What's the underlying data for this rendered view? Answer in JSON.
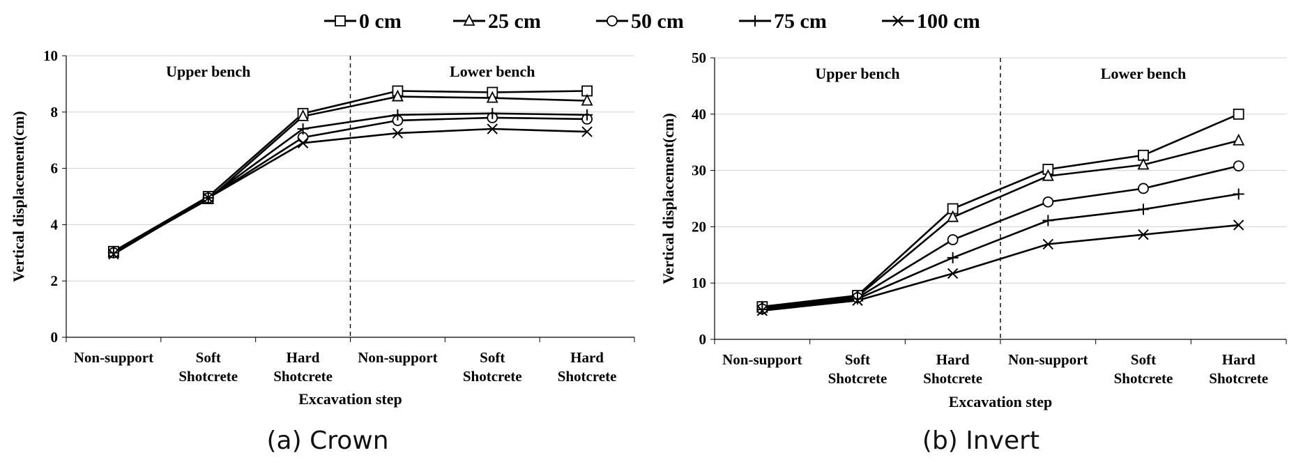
{
  "legend": [
    {
      "name": "0 cm",
      "marker": "square"
    },
    {
      "name": "25 cm",
      "marker": "triangle"
    },
    {
      "name": "50 cm",
      "marker": "circle"
    },
    {
      "name": "75 cm",
      "marker": "plus"
    },
    {
      "name": "100 cm",
      "marker": "cross"
    }
  ],
  "chart_data": [
    {
      "type": "line",
      "caption": "(a) Crown",
      "xlabel": "Excavation step",
      "ylabel": "Vertical displacement(cm)",
      "ylim": [
        0,
        10
      ],
      "yticks": [
        "0",
        "2",
        "4",
        "6",
        "8",
        "10"
      ],
      "categories": [
        [
          "Non-support"
        ],
        [
          "Soft",
          "Shotcrete"
        ],
        [
          "Hard",
          "Shotcrete"
        ],
        [
          "Non-support"
        ],
        [
          "Soft",
          "Shotcrete"
        ],
        [
          "Hard",
          "Shotcrete"
        ]
      ],
      "regions": [
        "Upper bench",
        "Lower bench"
      ],
      "grid": true,
      "series": [
        {
          "name": "0 cm",
          "marker": "square",
          "values": [
            3.05,
            5.0,
            7.95,
            8.75,
            8.7,
            8.75
          ]
        },
        {
          "name": "25 cm",
          "marker": "triangle",
          "values": [
            3.0,
            4.9,
            7.85,
            8.55,
            8.5,
            8.4
          ]
        },
        {
          "name": "50 cm",
          "marker": "circle",
          "values": [
            3.0,
            4.95,
            7.1,
            7.7,
            7.8,
            7.75
          ]
        },
        {
          "name": "75 cm",
          "marker": "plus",
          "values": [
            3.0,
            4.95,
            7.4,
            7.9,
            7.95,
            7.9
          ]
        },
        {
          "name": "100 cm",
          "marker": "cross",
          "values": [
            2.95,
            4.95,
            6.9,
            7.25,
            7.4,
            7.3
          ]
        }
      ]
    },
    {
      "type": "line",
      "caption": "(b) Invert",
      "xlabel": "Excavation step",
      "ylabel": "Vertical displacement(cm)",
      "ylim": [
        0,
        50
      ],
      "yticks": [
        "0",
        "10",
        "20",
        "30",
        "40",
        "50"
      ],
      "categories": [
        [
          "Non-support"
        ],
        [
          "Soft",
          "Shotcrete"
        ],
        [
          "Hard",
          "Shotcrete"
        ],
        [
          "Non-support"
        ],
        [
          "Soft",
          "Shotcrete"
        ],
        [
          "Hard",
          "Shotcrete"
        ]
      ],
      "regions": [
        "Upper bench",
        "Lower bench"
      ],
      "grid": true,
      "series": [
        {
          "name": "0 cm",
          "marker": "square",
          "values": [
            5.8,
            7.8,
            23.2,
            30.2,
            32.7,
            40.0
          ]
        },
        {
          "name": "25 cm",
          "marker": "triangle",
          "values": [
            5.6,
            7.6,
            21.7,
            29.0,
            31.0,
            35.3
          ]
        },
        {
          "name": "50 cm",
          "marker": "circle",
          "values": [
            5.4,
            7.4,
            17.7,
            24.4,
            26.8,
            30.8
          ]
        },
        {
          "name": "75 cm",
          "marker": "plus",
          "values": [
            5.3,
            7.2,
            14.5,
            21.1,
            23.1,
            25.8
          ]
        },
        {
          "name": "100 cm",
          "marker": "cross",
          "values": [
            5.1,
            6.9,
            11.7,
            16.9,
            18.6,
            20.3
          ]
        }
      ]
    }
  ]
}
